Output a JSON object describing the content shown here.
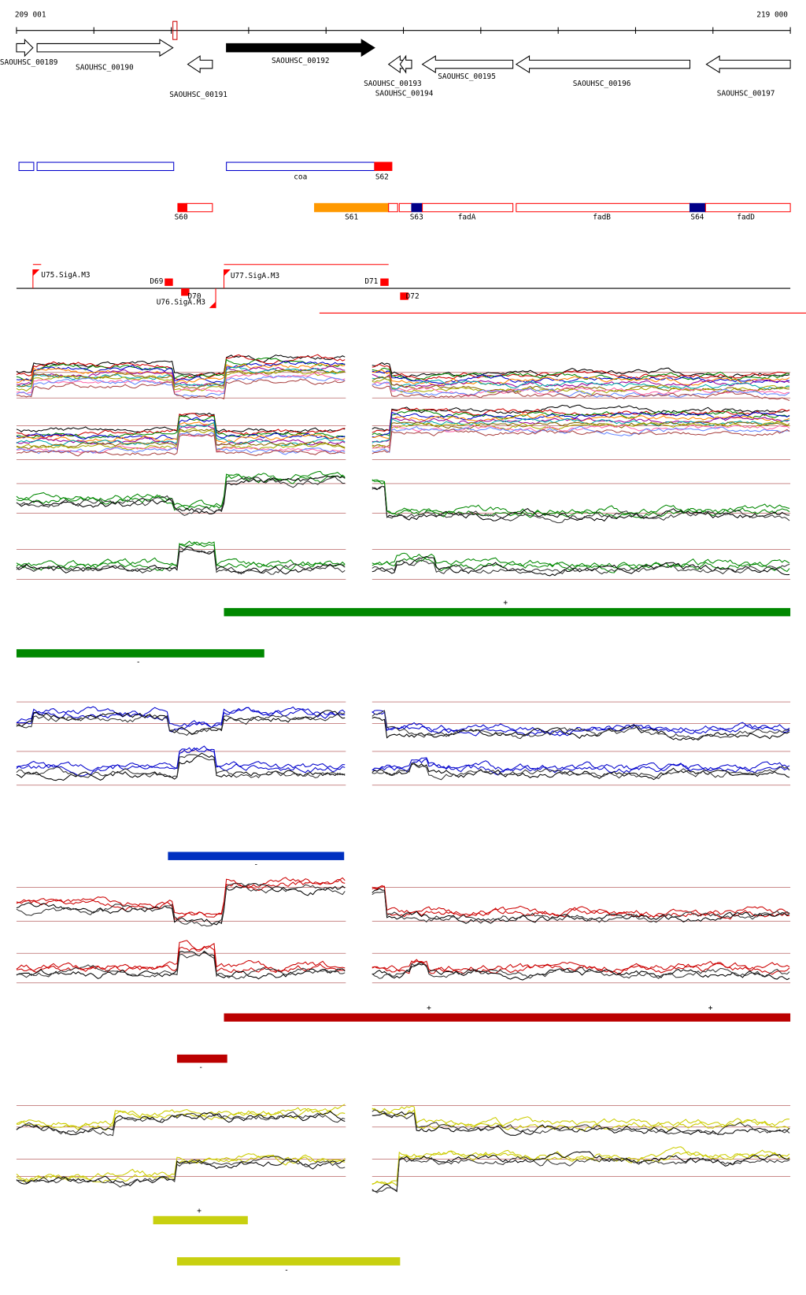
{
  "ruler": {
    "start": "209 001",
    "end": "219 000"
  },
  "genes": [
    "SAOUHSC_00189",
    "SAOUHSC_00190",
    "SAOUHSC_00191",
    "SAOUHSC_00192",
    "SAOUHSC_00193",
    "SAOUHSC_00194",
    "SAOUHSC_00195",
    "SAOUHSC_00196",
    "SAOUHSC_00197"
  ],
  "features": [
    "coa",
    "S62",
    "S60",
    "S61",
    "S63",
    "fadA",
    "fadB",
    "S64",
    "fadD"
  ],
  "promoters": [
    "U75.SigA.M3",
    "D69",
    "D70",
    "U76.SigA.M3",
    "U77.SigA.M3",
    "D71",
    "D72"
  ],
  "strand_marks": [
    "+",
    "-",
    "-",
    "+",
    "+",
    "-",
    "+",
    "-"
  ]
}
